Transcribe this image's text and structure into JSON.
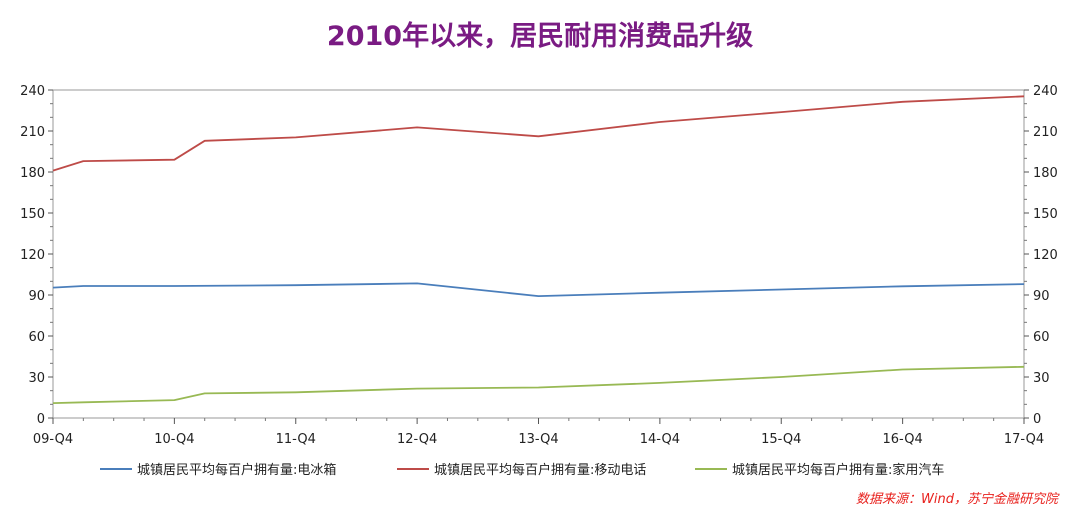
{
  "title": "2010年以来，居民耐用消费品升级",
  "source": "数据来源：Wind，苏宁金融研究院",
  "chart_data": {
    "type": "line",
    "title": "2010年以来，居民耐用消费品升级",
    "x_tick_labels": [
      "09-Q4",
      "10-Q4",
      "11-Q4",
      "12-Q4",
      "13-Q4",
      "14-Q4",
      "15-Q4",
      "16-Q4",
      "17-Q4"
    ],
    "xlim": [
      0,
      8
    ],
    "y_ticks": [
      0,
      30,
      60,
      90,
      120,
      150,
      180,
      210,
      240
    ],
    "ylim": [
      0,
      240
    ],
    "right_axis_mirrors_left": true,
    "grid": false,
    "legend_position": "bottom",
    "series": [
      {
        "name": "城镇居民平均每百户拥有量:电冰箱",
        "color": "#4a7ebb",
        "x": [
          0,
          0.25,
          1,
          2,
          3,
          4,
          5,
          6,
          7,
          8
        ],
        "values": [
          95.4,
          96.6,
          96.6,
          97.2,
          98.5,
          89.2,
          91.7,
          94.0,
          96.4,
          98.0
        ]
      },
      {
        "name": "城镇居民平均每百户拥有量:移动电话",
        "color": "#be4b48",
        "x": [
          0,
          0.25,
          1,
          1.25,
          2,
          3,
          4,
          5,
          6,
          7,
          8
        ],
        "values": [
          181.0,
          188.0,
          189.0,
          202.8,
          205.3,
          212.6,
          206.1,
          216.6,
          223.8,
          231.4,
          235.4
        ]
      },
      {
        "name": "城镇居民平均每百户拥有量:家用汽车",
        "color": "#98b954",
        "x": [
          0,
          0.25,
          1,
          1.25,
          2,
          3,
          4,
          5,
          6,
          7,
          8
        ],
        "values": [
          10.9,
          11.5,
          13.1,
          18.0,
          18.8,
          21.5,
          22.3,
          25.7,
          30.0,
          35.5,
          37.5
        ]
      }
    ]
  }
}
